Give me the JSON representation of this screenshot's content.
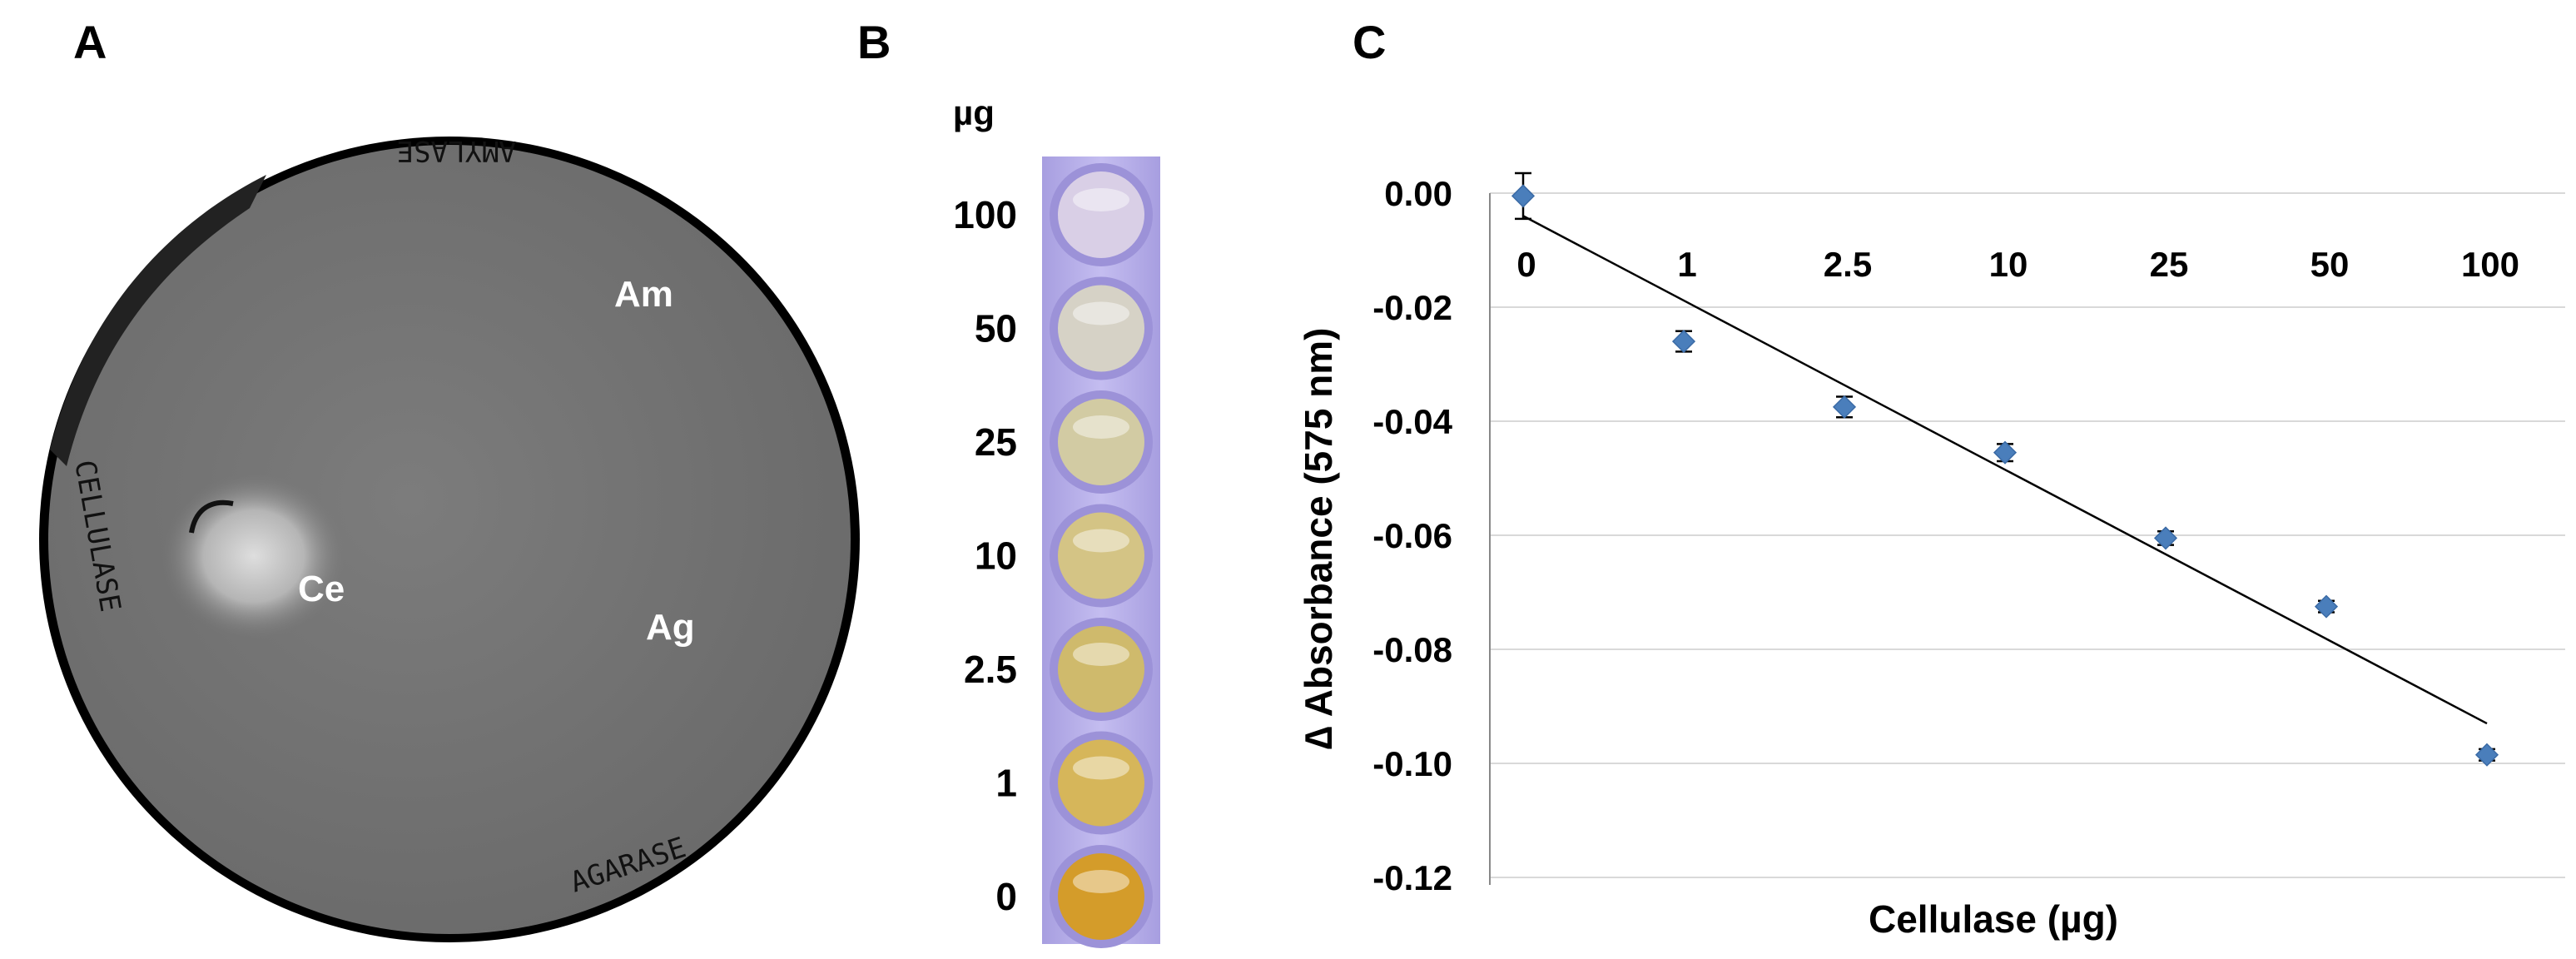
{
  "panels": {
    "a": {
      "label": "A",
      "plate_labels": {
        "amylase_written": "AMYLASE",
        "cellulase_written": "CELLULASE",
        "agarase_written": "AGARASE"
      },
      "spot_labels": {
        "am": "Am",
        "ce": "Ce",
        "ag": "Ag"
      },
      "colors": {
        "plate": "#777777",
        "clear_zone": "#d8d8d8"
      }
    },
    "b": {
      "label": "B",
      "unit": "µg",
      "doses": [
        "100",
        "50",
        "25",
        "10",
        "2.5",
        "1",
        "0"
      ],
      "well_colors": [
        "#d9cfe6",
        "#d6d2c6",
        "#d2cba3",
        "#d4c485",
        "#cfba6c",
        "#d6b65a",
        "#d49c2a"
      ],
      "strip_color": "#b9aee6"
    },
    "c": {
      "label": "C",
      "chart_data": {
        "type": "scatter",
        "title": "",
        "xlabel": "Cellulase (µg)",
        "ylabel": "∆ Absorbance (575 nm)",
        "categories": [
          "0",
          "1",
          "2.5",
          "10",
          "25",
          "50",
          "100"
        ],
        "x_index": [
          0,
          1,
          2,
          3,
          4,
          5,
          6
        ],
        "values": [
          -0.0005,
          -0.026,
          -0.0375,
          -0.0455,
          -0.0605,
          -0.0725,
          -0.0985
        ],
        "errors": [
          0.004,
          0.0018,
          0.0018,
          0.0015,
          0.0012,
          0.001,
          0.001
        ],
        "ylim": [
          -0.12,
          0.0
        ],
        "yticks": [
          "0.00",
          "-0.02",
          "-0.04",
          "-0.06",
          "-0.08",
          "-0.10",
          "-0.12"
        ],
        "ytick_values": [
          0.0,
          -0.02,
          -0.04,
          -0.06,
          -0.08,
          -0.1,
          -0.12
        ],
        "trendline": {
          "type": "linear",
          "start_value": -0.004,
          "end_value": -0.093
        },
        "grid": true,
        "marker_color": "#4a7ebb"
      }
    }
  }
}
